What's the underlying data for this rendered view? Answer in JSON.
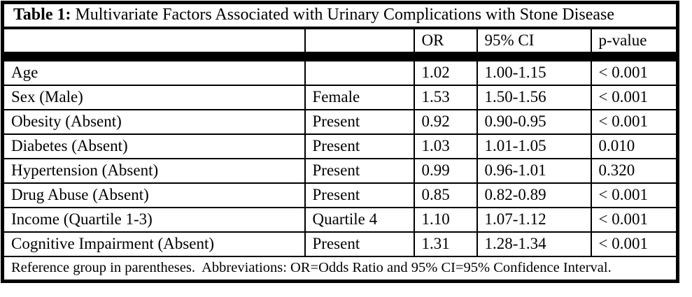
{
  "table": {
    "title": {
      "label": "Table 1:",
      "rest": "Multivariate Factors Associated with Urinary Complications with Stone Disease"
    },
    "headers": {
      "factor": "",
      "reference": "",
      "or": "OR",
      "ci": "95% CI",
      "p": "p-value"
    },
    "rows": [
      {
        "factor": "Age",
        "reference": "",
        "or": "1.02",
        "ci": "1.00-1.15",
        "p": "< 0.001"
      },
      {
        "factor": "Sex (Male)",
        "reference": "Female",
        "or": "1.53",
        "ci": "1.50-1.56",
        "p": "< 0.001"
      },
      {
        "factor": "Obesity (Absent)",
        "reference": "Present",
        "or": "0.92",
        "ci": "0.90-0.95",
        "p": "< 0.001"
      },
      {
        "factor": "Diabetes (Absent)",
        "reference": "Present",
        "or": "1.03",
        "ci": "1.01-1.05",
        "p": "0.010"
      },
      {
        "factor": "Hypertension (Absent)",
        "reference": "Present",
        "or": "0.99",
        "ci": "0.96-1.01",
        "p": "0.320"
      },
      {
        "factor": "Drug Abuse (Absent)",
        "reference": "Present",
        "or": "0.85",
        "ci": "0.82-0.89",
        "p": "< 0.001"
      },
      {
        "factor": "Income (Quartile 1-3)",
        "reference": "Quartile 4",
        "or": "1.10",
        "ci": "1.07-1.12",
        "p": "< 0.001"
      },
      {
        "factor": "Cognitive Impairment (Absent)",
        "reference": "Present",
        "or": "1.31",
        "ci": "1.28-1.34",
        "p": "< 0.001"
      }
    ],
    "footnote": "Reference group in parentheses.  Abbreviations: OR=Odds Ratio and 95% CI=95% Confidence Interval."
  }
}
